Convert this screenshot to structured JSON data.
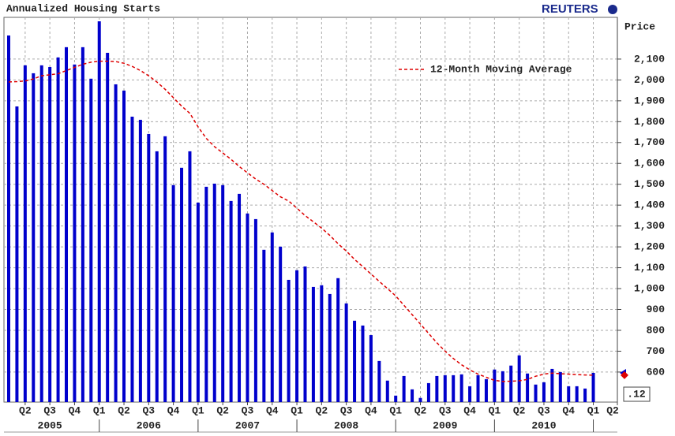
{
  "chart_data": {
    "type": "bar",
    "title": "Annualized Housing Starts",
    "brand": "REUTERS",
    "y_axis_label": "Price",
    "grid": true,
    "categories": [
      null,
      null,
      null,
      null,
      null,
      null,
      null,
      null,
      null,
      null,
      null,
      null,
      null,
      null,
      null,
      null,
      null,
      null,
      null,
      null,
      null,
      null,
      null,
      null,
      null,
      null,
      null,
      null,
      null,
      null,
      null,
      null,
      null,
      null,
      null,
      null,
      null,
      null,
      null,
      null,
      null,
      null,
      null,
      null,
      null,
      null,
      null,
      null,
      null,
      null,
      null,
      null,
      null,
      null,
      null,
      null,
      null,
      null,
      null,
      null,
      null,
      null,
      null,
      null,
      null,
      null,
      null,
      null,
      null,
      null,
      null,
      null
    ],
    "series": [
      {
        "type": "bar",
        "color": "#0000cc",
        "values": [
          2213,
          1873,
          2070,
          2032,
          2070,
          2062,
          2108,
          2157,
          2074,
          2157,
          2006,
          2281,
          2130,
          1979,
          1949,
          1824,
          1809,
          1741,
          1658,
          1730,
          1496,
          1579,
          1658,
          1412,
          1488,
          1503,
          1496,
          1420,
          1454,
          1360,
          1333,
          1186,
          1269,
          1201,
          1042,
          1088,
          1106,
          1008,
          1016,
          974,
          1050,
          929,
          846,
          823,
          777,
          653,
          559,
          487,
          581,
          517,
          476,
          547,
          581,
          585,
          585,
          589,
          532,
          585,
          566,
          612,
          604,
          631,
          680,
          593,
          540,
          551,
          615,
          600,
          532,
          532,
          521,
          596
        ]
      },
      {
        "type": "line",
        "name": "12-Month Moving Average",
        "color": "#dd0000",
        "values": [
          1990,
          1992,
          1995,
          2005,
          2020,
          2025,
          2030,
          2045,
          2060,
          2075,
          2085,
          2090,
          2090,
          2088,
          2080,
          2065,
          2045,
          2020,
          1990,
          1955,
          1915,
          1875,
          1840,
          1775,
          1720,
          1680,
          1650,
          1620,
          1585,
          1555,
          1525,
          1500,
          1470,
          1440,
          1420,
          1385,
          1350,
          1320,
          1290,
          1255,
          1215,
          1180,
          1140,
          1105,
          1070,
          1035,
          1000,
          965,
          920,
          875,
          830,
          785,
          740,
          700,
          665,
          635,
          610,
          590,
          575,
          560,
          555,
          556,
          558,
          565,
          580,
          590,
          595,
          592,
          590,
          588,
          586,
          585
        ]
      }
    ],
    "ylim": [
      456,
      2300
    ],
    "yticks": [
      600,
      700,
      800,
      900,
      {
        "value": 1000,
        "label": "1,000"
      },
      {
        "value": 1100,
        "label": "1,100"
      },
      {
        "value": 1200,
        "label": "1,200"
      },
      {
        "value": 1300,
        "label": "1,300"
      },
      {
        "value": 1400,
        "label": "1,400"
      },
      {
        "value": 1500,
        "label": "1,500"
      },
      {
        "value": 1600,
        "label": "1,600"
      },
      {
        "value": 1700,
        "label": "1,700"
      },
      {
        "value": 1800,
        "label": "1,800"
      },
      {
        "value": 1900,
        "label": "1,900"
      },
      {
        "value": 2000,
        "label": "2,000"
      },
      {
        "value": 2100,
        "label": "2,100"
      }
    ],
    "quarter_labels": [
      "Q2",
      "Q3",
      "Q4",
      "Q1",
      "Q2",
      "Q3",
      "Q4",
      "Q1",
      "Q2",
      "Q3",
      "Q4",
      "Q1",
      "Q2",
      "Q3",
      "Q4",
      "Q1",
      "Q2",
      "Q3",
      "Q4",
      "Q1",
      "Q2",
      "Q3",
      "Q4",
      "Q1",
      "Q2"
    ],
    "year_labels": [
      "2005",
      "2006",
      "2007",
      "2008",
      "2009",
      "2010"
    ],
    "last_value_label": ".12"
  }
}
